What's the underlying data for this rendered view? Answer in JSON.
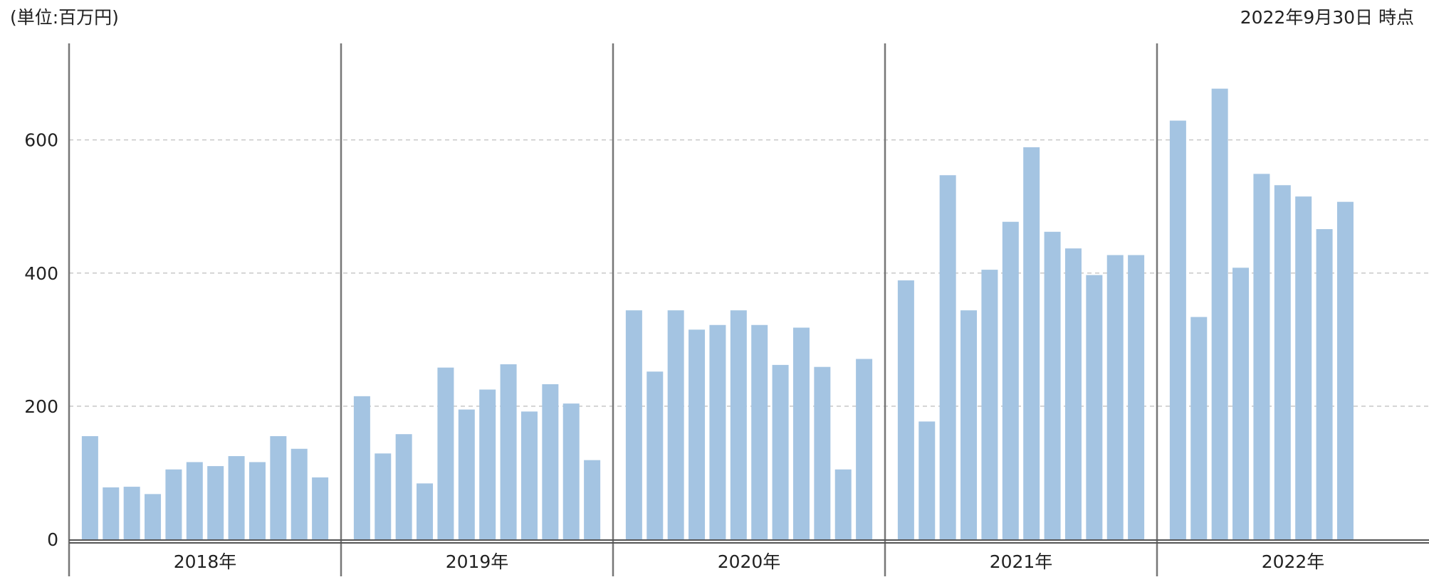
{
  "chart_data": {
    "type": "bar",
    "unit_note": "(単位:百万円)",
    "as_of": "2022年9月30日 時点",
    "color": "#a4c4e2",
    "groups": [
      {
        "name": "2018年",
        "values": [
          155,
          78,
          79,
          68,
          105,
          116,
          110,
          125,
          116,
          155,
          136,
          93
        ]
      },
      {
        "name": "2019年",
        "values": [
          215,
          129,
          158,
          84,
          258,
          195,
          225,
          263,
          192,
          233,
          204,
          119
        ]
      },
      {
        "name": "2020年",
        "values": [
          344,
          252,
          344,
          315,
          322,
          344,
          322,
          262,
          318,
          259,
          105,
          271
        ]
      },
      {
        "name": "2021年",
        "values": [
          389,
          177,
          547,
          344,
          405,
          477,
          589,
          462,
          437,
          397,
          427,
          427
        ]
      },
      {
        "name": "2022年",
        "values": [
          629,
          334,
          677,
          408,
          549,
          532,
          515,
          466,
          507
        ]
      }
    ],
    "ylim": [
      0,
      745
    ],
    "yticks": [
      0,
      200,
      400,
      600
    ],
    "grid": true
  }
}
